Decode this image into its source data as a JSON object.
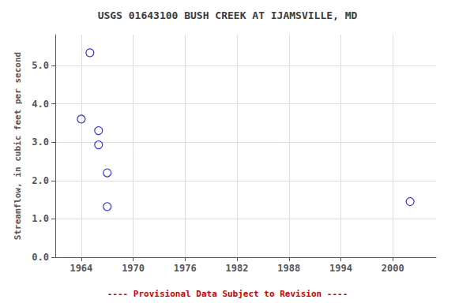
{
  "chart_data": {
    "type": "scatter",
    "title": "USGS 01643100 BUSH CREEK AT IJAMSVILLE, MD",
    "ylabel": "Streamflow, in cubic feet per second",
    "x": [
      1964,
      1965,
      1966,
      1966,
      1967,
      1967,
      2002
    ],
    "values": [
      3.6,
      5.33,
      3.3,
      2.93,
      2.2,
      1.32,
      1.45
    ],
    "color": "#0000CC",
    "marker": "circle",
    "xlim": [
      1961,
      2005
    ],
    "xticks": [
      1964,
      1970,
      1976,
      1982,
      1988,
      1994,
      2000
    ],
    "ylim": [
      0.0,
      5.8
    ],
    "yticks": [
      {
        "value": 0,
        "label": "0.0"
      },
      {
        "value": 1,
        "label": "1.0"
      },
      {
        "value": 2,
        "label": "2.0"
      },
      {
        "value": 3,
        "label": "3.0"
      },
      {
        "value": 4,
        "label": "4.0"
      },
      {
        "value": 5,
        "label": "5.0"
      }
    ],
    "grid": true,
    "annotations": [
      {
        "text": "---- Provisional Data Subject to Revision ----",
        "color": "#CC0000"
      }
    ]
  }
}
